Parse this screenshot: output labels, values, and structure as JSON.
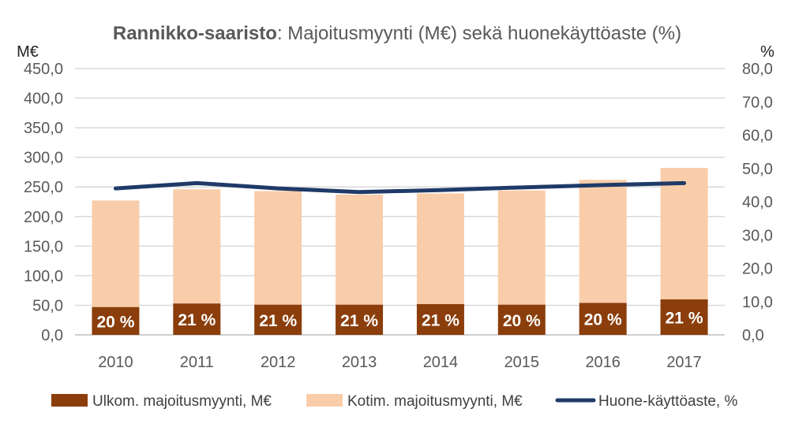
{
  "chart_data": {
    "type": "bar",
    "title_bold": "Rannikko-saaristo",
    "title_rest": ": Majoitusmyynti (M€) sekä huonekäyttöaste (%)",
    "y_left_unit": "M€",
    "y_right_unit": "%",
    "categories": [
      "2010",
      "2011",
      "2012",
      "2013",
      "2014",
      "2015",
      "2016",
      "2017"
    ],
    "y_left_ticks": [
      "0,0",
      "50,0",
      "100,0",
      "150,0",
      "200,0",
      "250,0",
      "300,0",
      "350,0",
      "400,0",
      "450,0"
    ],
    "y_right_ticks": [
      "0,0",
      "10,0",
      "20,0",
      "30,0",
      "40,0",
      "50,0",
      "60,0",
      "70,0",
      "80,0"
    ],
    "ylim_left": [
      0,
      450
    ],
    "ylim_right": [
      0,
      80
    ],
    "grid": true,
    "legend_position": "bottom",
    "series": [
      {
        "name": "Ulkom. majoitusmyynti, M€",
        "type": "bar",
        "axis": "left",
        "color": "#8B3E0B",
        "values": [
          47,
          53,
          51,
          51,
          52,
          51,
          54,
          60
        ],
        "labels": [
          "20 %",
          "21 %",
          "21 %",
          "21 %",
          "21 %",
          "20 %",
          "20 %",
          "21 %"
        ]
      },
      {
        "name": "Kotim. majoitusmyynti, M€",
        "type": "bar",
        "axis": "left",
        "color": "#F9CDAA",
        "values": [
          180,
          193,
          192,
          186,
          187,
          193,
          208,
          222
        ]
      },
      {
        "name": "Huone-käyttöaste, %",
        "type": "line",
        "axis": "right",
        "color": "#1F3A68",
        "values": [
          44.0,
          45.6,
          44.0,
          42.9,
          43.5,
          44.3,
          45.0,
          45.6
        ]
      }
    ]
  }
}
